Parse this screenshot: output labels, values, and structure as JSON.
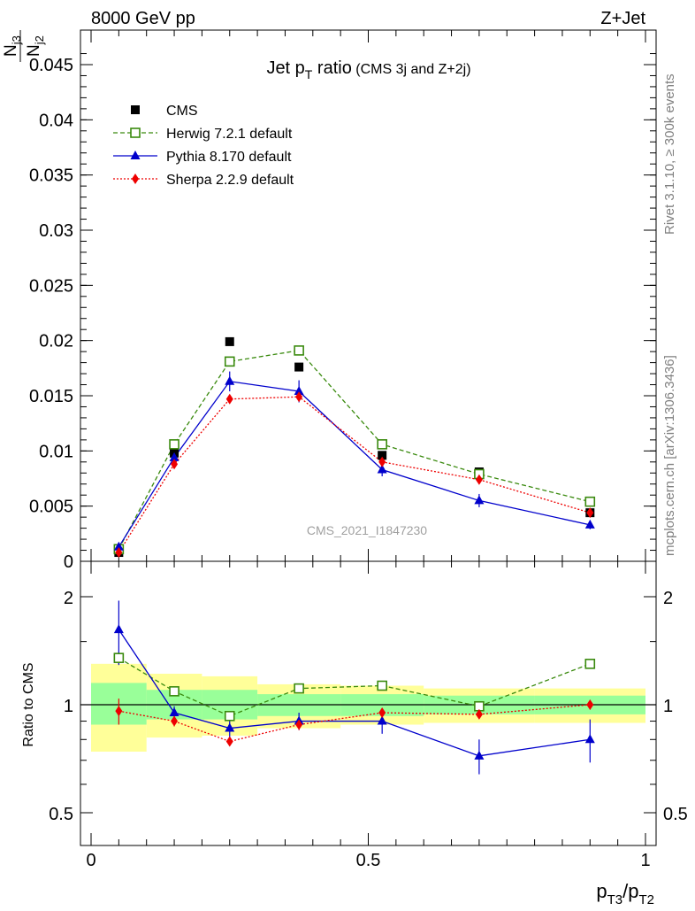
{
  "header": {
    "left": "8000 GeV pp",
    "right": "Z+Jet"
  },
  "side_labels": {
    "rivet": "Rivet 3.1.10, ≥ 300k events",
    "mcplots": "mcplots.cern.ch [arXiv:1306.3436]"
  },
  "chart_data": [
    {
      "type": "line",
      "title_main": "Jet p",
      "title_sub": "T",
      "title_main_tail": " ratio",
      "title_small": " (CMS 3j and Z+2j)",
      "ylabel_top": "N",
      "ylabel_top_sub": "j3",
      "ylabel_bottom": "N",
      "ylabel_bottom_sub": "j2",
      "watermark": "CMS_2021_I1847230",
      "ylim": [
        0,
        0.048
      ],
      "xlim": [
        0,
        1
      ],
      "yticks": [
        0,
        0.005,
        0.01,
        0.015,
        0.02,
        0.025,
        0.03,
        0.035,
        0.04,
        0.045
      ],
      "ytick_labels": [
        "0",
        "0.005",
        "0.01",
        "0.015",
        "0.02",
        "0.025",
        "0.03",
        "0.035",
        "0.04",
        "0.045"
      ],
      "legend_position": "top-left",
      "x": [
        0.05,
        0.15,
        0.25,
        0.375,
        0.525,
        0.7,
        0.9
      ],
      "series": [
        {
          "name": "CMS",
          "marker": "filled-square",
          "color": "#000000",
          "values": [
            0.0008,
            0.0098,
            0.0199,
            0.0176,
            0.0096,
            0.0081,
            0.0044
          ],
          "xerr": [
            0.05,
            0.05,
            0.05,
            0.075,
            0.075,
            0.1,
            0.1
          ]
        },
        {
          "name": "Herwig 7.2.1 default",
          "marker": "open-square",
          "line": "dashed",
          "color": "#3a8a0e",
          "values": [
            0.0011,
            0.0106,
            0.0181,
            0.0191,
            0.0106,
            0.0079,
            0.0054
          ]
        },
        {
          "name": "Pythia 8.170 default",
          "marker": "filled-triangle",
          "line": "solid",
          "color": "#0000cc",
          "values": [
            0.0013,
            0.0094,
            0.0163,
            0.0154,
            0.0083,
            0.0055,
            0.0033
          ],
          "yerr": [
            0.0003,
            0.0004,
            0.0009,
            0.001,
            0.0006,
            0.0006,
            0.0004
          ]
        },
        {
          "name": "Sherpa 2.2.9 default",
          "marker": "filled-diamond",
          "line": "dotted",
          "color": "#ee0000",
          "values": [
            0.0008,
            0.0088,
            0.0147,
            0.0149,
            0.009,
            0.0074,
            0.0044
          ],
          "yerr": [
            0.0001,
            0.0002,
            0.0003,
            0.0004,
            0.0002,
            0.0002,
            0.0002
          ]
        }
      ]
    },
    {
      "type": "line",
      "ylabel": "Ratio to CMS",
      "xlabel_main": "p",
      "xlabel_sub1": "T3",
      "xlabel_mid": "/p",
      "xlabel_sub2": "T2",
      "xlim": [
        0,
        1
      ],
      "ylim": [
        0.35,
        2.3
      ],
      "xticks": [
        0,
        0.5,
        1
      ],
      "xtick_labels": [
        "0",
        "0.5",
        "1"
      ],
      "yticks": [
        0.5,
        1,
        2
      ],
      "ytick_labels": [
        "0.5",
        "1",
        "2"
      ],
      "reference_line": 1,
      "bands": {
        "x_edges": [
          0,
          0.1,
          0.2,
          0.3,
          0.45,
          0.6,
          0.8,
          1.0
        ],
        "yellow": [
          [
            0.74,
            1.3
          ],
          [
            0.81,
            1.22
          ],
          [
            0.82,
            1.2
          ],
          [
            0.86,
            1.14
          ],
          [
            0.88,
            1.13
          ],
          [
            0.89,
            1.11
          ],
          [
            0.89,
            1.11
          ]
        ],
        "green": [
          [
            0.88,
            1.15
          ],
          [
            0.91,
            1.1
          ],
          [
            0.91,
            1.1
          ],
          [
            0.93,
            1.07
          ],
          [
            0.93,
            1.07
          ],
          [
            0.94,
            1.06
          ],
          [
            0.94,
            1.06
          ]
        ],
        "yellow_color": "#ffff99",
        "green_color": "#99ff99"
      },
      "series": [
        {
          "name": "Herwig 7.2.1 default",
          "marker": "open-square",
          "line": "dashed",
          "color": "#3a8a0e",
          "values": [
            1.35,
            1.09,
            0.93,
            1.11,
            1.13,
            0.99,
            1.3
          ],
          "yerr": [
            0.05,
            0.02,
            0.02,
            0.02,
            0.02,
            0.02,
            0.04
          ]
        },
        {
          "name": "Pythia 8.170 default",
          "marker": "filled-triangle",
          "line": "solid",
          "color": "#0000cc",
          "values": [
            1.62,
            0.95,
            0.86,
            0.9,
            0.9,
            0.72,
            0.8
          ],
          "yerr": [
            0.33,
            0.04,
            0.05,
            0.05,
            0.07,
            0.08,
            0.11
          ]
        },
        {
          "name": "Sherpa 2.2.9 default",
          "marker": "filled-diamond",
          "line": "dotted",
          "color": "#ee0000",
          "values": [
            0.96,
            0.9,
            0.79,
            0.88,
            0.95,
            0.94,
            1.0
          ],
          "yerr": [
            0.08,
            0.03,
            0.02,
            0.03,
            0.02,
            0.02,
            0.03
          ]
        }
      ]
    }
  ]
}
